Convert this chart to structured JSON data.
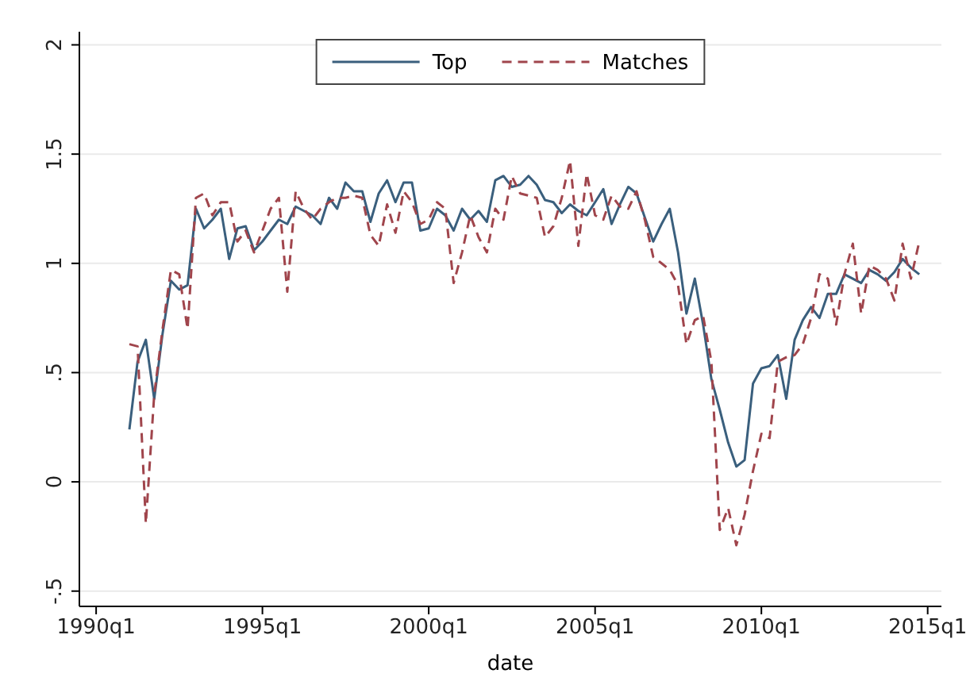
{
  "chart_data": {
    "type": "line",
    "xlabel": "date",
    "x": [
      "1991-01",
      "1991-04",
      "1991-07",
      "1991-10",
      "1992-01",
      "1992-04",
      "1992-07",
      "1992-10",
      "1993-01",
      "1993-04",
      "1993-07",
      "1993-10",
      "1994-01",
      "1994-04",
      "1994-07",
      "1994-10",
      "1995-01",
      "1995-04",
      "1995-07",
      "1995-10",
      "1996-01",
      "1996-04",
      "1996-07",
      "1996-10",
      "1997-01",
      "1997-04",
      "1997-07",
      "1997-10",
      "1998-01",
      "1998-04",
      "1998-07",
      "1998-10",
      "1999-01",
      "1999-04",
      "1999-07",
      "1999-10",
      "2000-01",
      "2000-04",
      "2000-07",
      "2000-10",
      "2001-01",
      "2001-04",
      "2001-07",
      "2001-10",
      "2002-01",
      "2002-04",
      "2002-07",
      "2002-10",
      "2003-01",
      "2003-04",
      "2003-07",
      "2003-10",
      "2004-01",
      "2004-04",
      "2004-07",
      "2004-10",
      "2005-01",
      "2005-04",
      "2005-07",
      "2005-10",
      "2006-01",
      "2006-04",
      "2006-07",
      "2006-10",
      "2007-01",
      "2007-04",
      "2007-07",
      "2007-10",
      "2008-01",
      "2008-04",
      "2008-07",
      "2008-10",
      "2009-01",
      "2009-04",
      "2009-07",
      "2009-10",
      "2010-01",
      "2010-04",
      "2010-07",
      "2010-10",
      "2011-01",
      "2011-04",
      "2011-07",
      "2011-10",
      "2012-01",
      "2012-04",
      "2012-07",
      "2012-10",
      "2013-01",
      "2013-04",
      "2013-07",
      "2013-10",
      "2014-01",
      "2014-04",
      "2014-07",
      "2014-10"
    ],
    "series": [
      {
        "name": "Top",
        "color": "#3a5f7d",
        "line_style": "solid",
        "values": [
          0.24,
          0.55,
          0.65,
          0.38,
          0.68,
          0.92,
          0.88,
          0.9,
          1.25,
          1.16,
          1.2,
          1.25,
          1.02,
          1.16,
          1.17,
          1.06,
          1.1,
          1.15,
          1.2,
          1.18,
          1.26,
          1.24,
          1.22,
          1.18,
          1.3,
          1.25,
          1.37,
          1.33,
          1.33,
          1.19,
          1.32,
          1.38,
          1.28,
          1.37,
          1.37,
          1.15,
          1.16,
          1.25,
          1.22,
          1.15,
          1.25,
          1.2,
          1.24,
          1.19,
          1.38,
          1.4,
          1.35,
          1.36,
          1.4,
          1.36,
          1.29,
          1.28,
          1.23,
          1.27,
          1.24,
          1.22,
          1.28,
          1.34,
          1.18,
          1.27,
          1.35,
          1.32,
          1.21,
          1.1,
          1.18,
          1.25,
          1.05,
          0.77,
          0.93,
          0.72,
          0.47,
          0.33,
          0.18,
          0.07,
          0.1,
          0.45,
          0.52,
          0.53,
          0.58,
          0.38,
          0.65,
          0.74,
          0.8,
          0.75,
          0.86,
          0.86,
          0.95,
          0.93,
          0.91,
          0.97,
          0.95,
          0.92,
          0.96,
          1.02,
          0.98,
          0.95
        ]
      },
      {
        "name": "Matches",
        "color": "#a0454c",
        "line_style": "dashed",
        "values": [
          0.63,
          0.62,
          -0.19,
          0.4,
          0.7,
          0.97,
          0.95,
          0.7,
          1.3,
          1.32,
          1.22,
          1.28,
          1.28,
          1.1,
          1.15,
          1.05,
          1.15,
          1.25,
          1.3,
          0.87,
          1.33,
          1.25,
          1.2,
          1.25,
          1.28,
          1.3,
          1.3,
          1.31,
          1.3,
          1.13,
          1.08,
          1.27,
          1.14,
          1.33,
          1.28,
          1.18,
          1.2,
          1.28,
          1.25,
          0.91,
          1.05,
          1.22,
          1.12,
          1.05,
          1.25,
          1.2,
          1.4,
          1.32,
          1.31,
          1.3,
          1.12,
          1.17,
          1.3,
          1.47,
          1.08,
          1.41,
          1.22,
          1.2,
          1.31,
          1.26,
          1.25,
          1.33,
          1.2,
          1.03,
          1.0,
          0.97,
          0.9,
          0.63,
          0.74,
          0.76,
          0.55,
          -0.22,
          -0.12,
          -0.29,
          -0.15,
          0.05,
          0.22,
          0.2,
          0.55,
          0.57,
          0.58,
          0.63,
          0.75,
          0.95,
          0.93,
          0.72,
          0.95,
          1.09,
          0.77,
          0.99,
          0.97,
          0.93,
          0.83,
          1.09,
          0.93,
          1.1
        ]
      }
    ],
    "xlim": [
      "1989-07",
      "2015-06"
    ],
    "xticks": [
      {
        "value": "1990-01",
        "label": "1990q1"
      },
      {
        "value": "1995-01",
        "label": "1995q1"
      },
      {
        "value": "2000-01",
        "label": "2000q1"
      },
      {
        "value": "2005-01",
        "label": "2005q1"
      },
      {
        "value": "2010-01",
        "label": "2010q1"
      },
      {
        "value": "2015-01",
        "label": "2015q1"
      }
    ],
    "ylim": [
      -0.57,
      2.06
    ],
    "yticks": [
      {
        "value": -0.5,
        "label": "-.5"
      },
      0,
      {
        "value": 0.5,
        "label": ".5"
      },
      1,
      1.5,
      2
    ],
    "grid": "y",
    "legend": "top",
    "marker": "none"
  }
}
